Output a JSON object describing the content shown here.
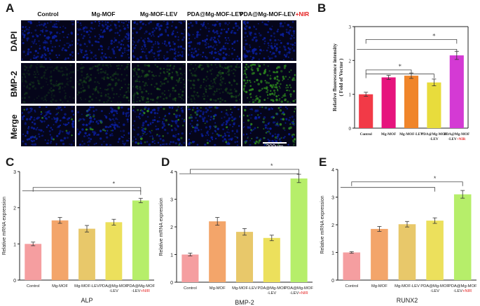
{
  "panel_labels": {
    "a": "A",
    "b": "B",
    "c": "C",
    "d": "D",
    "e": "E"
  },
  "panel_a": {
    "columns": [
      "Control",
      "Mg-MOF",
      "Mg-MOF-LEV",
      "PDA@Mg-MOF-LEV",
      "PDA@Mg-MOF-LEV"
    ],
    "column_suffix": "+NIR",
    "rows": [
      "DAPI",
      "BMP-2",
      "Merge"
    ],
    "scale_bar": "200μm",
    "colors": {
      "dapi": "#0b1f9e",
      "bmp2": "#2e8a1e",
      "background": "#05051a"
    }
  },
  "chart_data": [
    {
      "id": "B",
      "type": "bar",
      "title": "",
      "ylabel": "Relative fluorescence intensity\n( Fold of Vector )",
      "xlabel": "",
      "categories": [
        "Control",
        "Mg-MOF",
        "Mg-MOF-LEV",
        "PDA@Mg-MOF\n-LEV",
        "PDA@Mg-MOF\n-LEV+NIR"
      ],
      "values": [
        1.0,
        1.5,
        1.55,
        1.35,
        2.15
      ],
      "errors": [
        0.06,
        0.06,
        0.08,
        0.1,
        0.12
      ],
      "ylim": [
        0,
        3
      ],
      "yticks": [
        0,
        1,
        2,
        3
      ],
      "colors": [
        "#f23a47",
        "#e6147d",
        "#f0852a",
        "#e8dc3c",
        "#d43ad4"
      ],
      "significance": "*"
    },
    {
      "id": "C",
      "type": "bar",
      "title": "ALP",
      "ylabel": "Relative mRNA expression",
      "xlabel": "ALP",
      "categories": [
        "Control",
        "Mg-MOF",
        "Mg-MOF-LEV",
        "PDA@Mg-MOF\n-LEV",
        "PDA@Mg-MOF\n-LEV+NIR"
      ],
      "values": [
        1.0,
        1.65,
        1.42,
        1.6,
        2.2
      ],
      "errors": [
        0.05,
        0.08,
        0.09,
        0.08,
        0.06
      ],
      "ylim": [
        0,
        3
      ],
      "yticks": [
        0,
        1,
        2,
        3
      ],
      "colors": [
        "#f59ea0",
        "#f3a56a",
        "#e8c86a",
        "#ece05c",
        "#b6ee6a"
      ],
      "significance": "*"
    },
    {
      "id": "D",
      "type": "bar",
      "title": "BMP-2",
      "ylabel": "Relative mRNA expression",
      "xlabel": "BMP-2",
      "categories": [
        "Control",
        "Mg-MOF",
        "Mg-MOF-LEV",
        "PDA@Mg-MOF\n-LEV",
        "PDA@Mg-MOF\n-LEV+NIR"
      ],
      "values": [
        1.0,
        2.2,
        1.82,
        1.6,
        3.75
      ],
      "errors": [
        0.05,
        0.14,
        0.12,
        0.1,
        0.15
      ],
      "ylim": [
        0,
        4
      ],
      "yticks": [
        0,
        1,
        2,
        3,
        4
      ],
      "colors": [
        "#f59ea0",
        "#f3a56a",
        "#e8c86a",
        "#ece05c",
        "#b6ee6a"
      ],
      "significance": "*"
    },
    {
      "id": "E",
      "type": "bar",
      "title": "RUNX2",
      "ylabel": "Relative mRNA expression",
      "xlabel": "RUNX2",
      "categories": [
        "Control",
        "Mg-MOF",
        "Mg-MOF-LEV",
        "PDA@Mg-MOF\n-LEV",
        "PDA@Mg-MOF\n-LEV+NIR"
      ],
      "values": [
        1.0,
        1.85,
        2.02,
        2.15,
        3.1
      ],
      "errors": [
        0.03,
        0.09,
        0.1,
        0.1,
        0.14
      ],
      "ylim": [
        0,
        4
      ],
      "yticks": [
        0,
        1,
        2,
        3,
        4
      ],
      "colors": [
        "#f59ea0",
        "#f3a56a",
        "#e8c86a",
        "#ece05c",
        "#b6ee6a"
      ],
      "significance": "*"
    }
  ]
}
